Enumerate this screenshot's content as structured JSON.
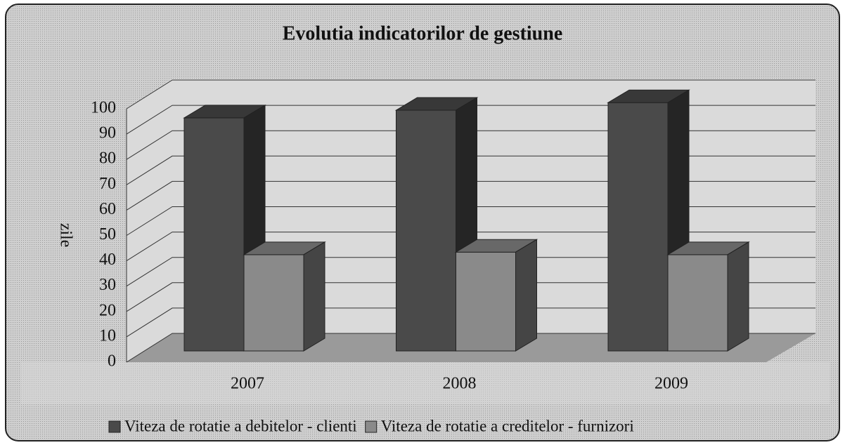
{
  "chart_data": {
    "type": "bar3d",
    "title": "Evolutia indicatorilor de gestiune",
    "ylabel": "zile",
    "categories": [
      "2007",
      "2008",
      "2009"
    ],
    "series": [
      {
        "name": "Viteza de rotatie a debitelor - clienti",
        "color": "#4a4a4a",
        "values": [
          92,
          95,
          98
        ]
      },
      {
        "name": "Viteza de rotatie a creditelor - furnizori",
        "color": "#8a8a8a",
        "values": [
          38,
          39,
          38
        ]
      }
    ],
    "ylim": [
      0,
      100
    ],
    "yticks": [
      0,
      10,
      20,
      30,
      40,
      50,
      60,
      70,
      80,
      90,
      100
    ],
    "grid": true
  }
}
